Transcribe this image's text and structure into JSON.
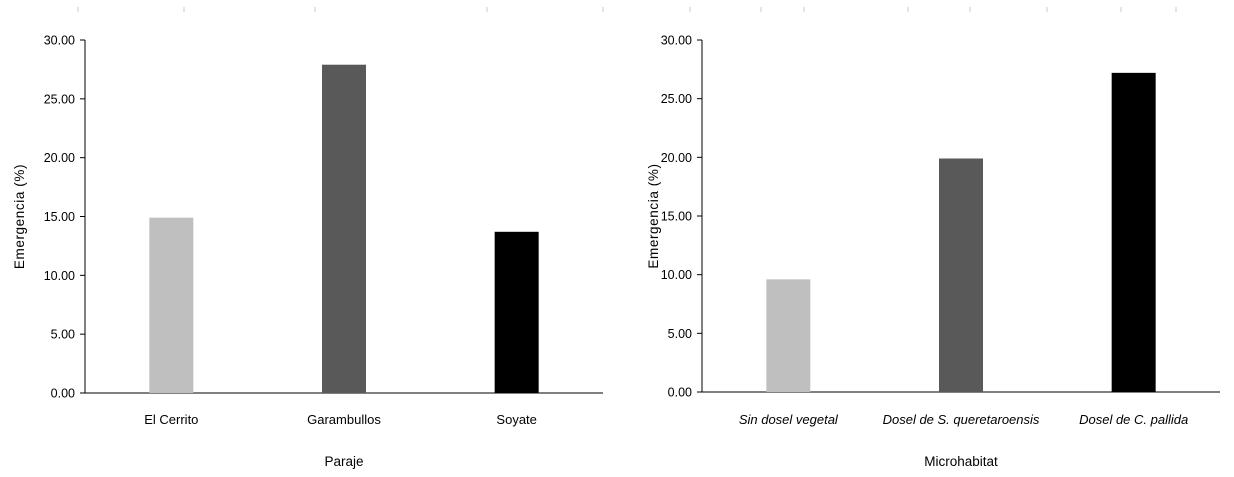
{
  "chart_data": [
    {
      "type": "bar",
      "title": "",
      "xlabel": "Paraje",
      "ylabel": "Emergencia (%)",
      "ylim": [
        0,
        30
      ],
      "yticks": [
        "0.00",
        "5.00",
        "10.00",
        "15.00",
        "20.00",
        "25.00",
        "30.00"
      ],
      "grid": false,
      "categories": [
        "El Cerrito",
        "Garambullos",
        "Soyate"
      ],
      "categories_italic": false,
      "values": [
        14.9,
        27.9,
        13.7
      ],
      "colors": [
        "#bfbfbf",
        "#595959",
        "#000000"
      ]
    },
    {
      "type": "bar",
      "title": "",
      "xlabel": "Microhabitat",
      "ylabel": "Emergencia (%)",
      "ylim": [
        0,
        30
      ],
      "yticks": [
        "0.00",
        "5.00",
        "10.00",
        "15.00",
        "20.00",
        "25.00",
        "30.00"
      ],
      "grid": false,
      "categories": [
        "Sin dosel vegetal",
        "Dosel de S. queretaroensis",
        "Dosel de C. pallida"
      ],
      "categories_italic": true,
      "values": [
        9.6,
        19.9,
        27.2
      ],
      "colors": [
        "#bfbfbf",
        "#595959",
        "#000000"
      ]
    }
  ]
}
